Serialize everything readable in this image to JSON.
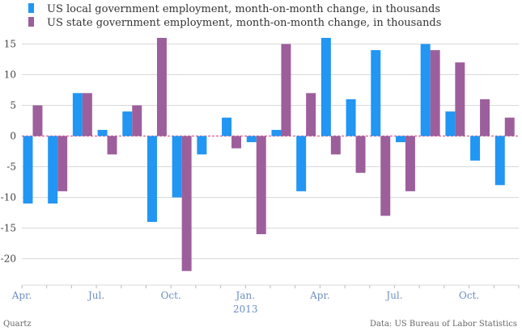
{
  "chart_data": {
    "type": "bar",
    "title": "",
    "xlabel": "",
    "ylabel": "",
    "ylim": [
      -22,
      17
    ],
    "yticks": [
      15,
      10,
      5,
      0,
      -5,
      -10,
      -15,
      -20
    ],
    "x_tick_labels": [
      {
        "label": "Apr.",
        "index": 0
      },
      {
        "label": "Jul.",
        "index": 3
      },
      {
        "label": "Oct.",
        "index": 6
      },
      {
        "label": "Jan.",
        "index": 9
      },
      {
        "label": "Apr.",
        "index": 12
      },
      {
        "label": "Jul.",
        "index": 15
      },
      {
        "label": "Oct.",
        "index": 18
      }
    ],
    "year_label": {
      "label": "2013",
      "index": 9
    },
    "categories": [
      "Apr 2012",
      "May 2012",
      "Jun 2012",
      "Jul 2012",
      "Aug 2012",
      "Sep 2012",
      "Oct 2012",
      "Nov 2012",
      "Dec 2012",
      "Jan 2013",
      "Feb 2013",
      "Mar 2013",
      "Apr 2013",
      "May 2013",
      "Jun 2013",
      "Jul 2013",
      "Aug 2013",
      "Sep 2013",
      "Oct 2013",
      "Nov 2013"
    ],
    "series": [
      {
        "name": "US local government employment, month-on-month change, in thousands",
        "color": "#2196f3",
        "values": [
          -11,
          -11,
          7,
          1,
          4,
          -14,
          -10,
          -3,
          3,
          -1,
          1,
          -9,
          16,
          6,
          14,
          -1,
          15,
          4,
          -4,
          -8
        ]
      },
      {
        "name": "US state government employment, month-on-month change, in thousands",
        "color": "#9c5f9c",
        "values": [
          5,
          -9,
          7,
          -3,
          5,
          16,
          -22,
          0,
          -2,
          -16,
          15,
          7,
          -3,
          -6,
          -13,
          -9,
          14,
          12,
          6,
          3
        ]
      }
    ]
  },
  "footer": {
    "source_left": "Quartz",
    "source_right": "Data: US Bureau of Labor Statistics"
  },
  "colors": {
    "grid": "#d9d9d9",
    "zero_line": "#e05c8a",
    "axis_text": "#6b8fc2"
  }
}
